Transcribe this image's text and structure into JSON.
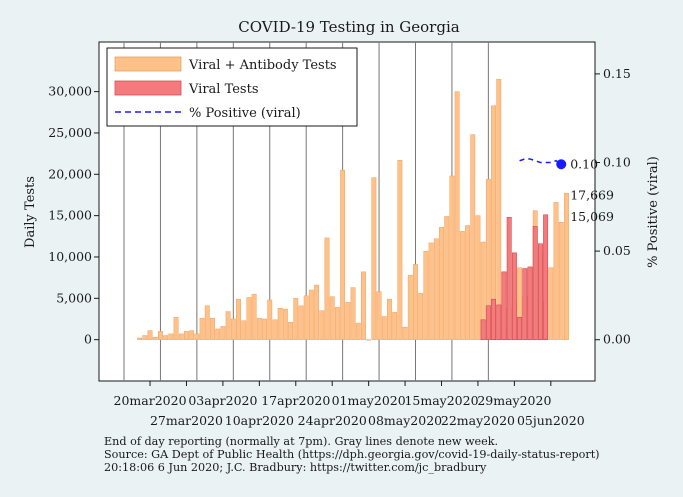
{
  "chart_data": {
    "type": "bar",
    "title": "COVID-19 Testing in Georgia",
    "ylabel": "Daily Tests",
    "y2label": "% Positive (viral)",
    "ylim": [
      -5000,
      36000
    ],
    "y2lim": [
      -0.0233,
      0.168
    ],
    "y_ticks": [
      0,
      5000,
      10000,
      15000,
      20000,
      25000,
      30000
    ],
    "y_tick_labels": [
      "0",
      "5,000",
      "10,000",
      "15,000",
      "20,000",
      "25,000",
      "30,000"
    ],
    "y2_ticks": [
      0.0,
      0.05,
      0.1,
      0.15
    ],
    "y2_tick_labels": [
      "0.00",
      "0.05",
      "0.10",
      "0.15"
    ],
    "x_start_date": "2020-03-13",
    "x_tick_days": [
      7,
      14,
      21,
      28,
      35,
      42,
      49,
      56,
      63,
      70,
      77,
      84
    ],
    "x_tick_labels": [
      "20mar2020",
      "27mar2020",
      "03apr2020",
      "10apr2020",
      "17apr2020",
      "24apr2020",
      "01may2020",
      "08may2020",
      "15may2020",
      "22may2020",
      "29may2020",
      "05jun2020"
    ],
    "week_lines_days": [
      2,
      9,
      16,
      23,
      30,
      37,
      44,
      51,
      58,
      65,
      72
    ],
    "series": [
      {
        "name": "Viral + Antibody Tests",
        "color": "#ffc18a",
        "start_day": 5,
        "values": [
          200,
          500,
          1100,
          300,
          1000,
          500,
          700,
          2700,
          700,
          1000,
          1100,
          700,
          2600,
          4100,
          2600,
          1300,
          1600,
          3400,
          2500,
          4900,
          2300,
          5100,
          5500,
          2600,
          2500,
          4800,
          2400,
          3800,
          3700,
          2100,
          5000,
          4100,
          5300,
          6000,
          6600,
          3500,
          12300,
          5200,
          3900,
          20500,
          4500,
          6300,
          2000,
          8200,
          0,
          19600,
          5800,
          2800,
          4900,
          3300,
          21700,
          1500,
          7800,
          9100,
          5600,
          10700,
          11700,
          12200,
          13600,
          14900,
          19800,
          30000,
          13100,
          13800,
          24800,
          15000,
          11800,
          19400,
          28300,
          31500,
          1200,
          3800,
          4600,
          8700,
          5300,
          8200,
          15600,
          10500,
          4600,
          8700,
          16600,
          14200,
          17700
        ]
      },
      {
        "name": "Viral Tests",
        "color": "#f47a7e",
        "start_day": 71,
        "values": [
          2400,
          4100,
          4900,
          4200,
          8200,
          14800,
          10500,
          2700,
          8600,
          8800,
          13700,
          11600,
          15100
        ]
      },
      {
        "name": "% Positive (viral)",
        "color": "#1a1aff",
        "x": [
          78,
          79,
          80,
          81,
          82,
          83,
          84,
          85,
          86
        ],
        "values": [
          0.101,
          0.102,
          0.102,
          0.101,
          0.1,
          0.1,
          0.1,
          0.101,
          0.099
        ]
      }
    ],
    "legend": {
      "position": "top-left",
      "entries": [
        "Viral + Antibody Tests",
        "Viral Tests",
        "% Positive (viral)"
      ]
    },
    "annotations": [
      {
        "text": "0.10",
        "color": "#1a1aff",
        "kind": "pct"
      },
      {
        "text": "17,669",
        "color": "#e8761a",
        "kind": "total"
      },
      {
        "text": "15,069",
        "color": "#d02020",
        "kind": "viral"
      }
    ]
  },
  "notes": [
    "End of day reporting (normally at 7pm). Gray lines denote new week.",
    "Source: GA Dept of Public Health (https://dph.georgia.gov/covid-19-daily-status-report)",
    "20:18:06   6 Jun 2020; J.C. Bradbury: https://twitter.com/jc_bradbury"
  ]
}
